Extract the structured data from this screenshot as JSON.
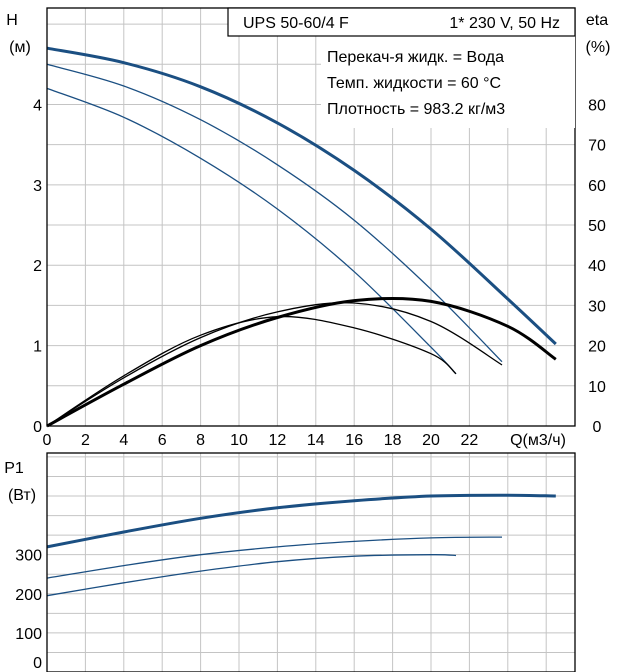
{
  "chart_data": [
    {
      "type": "line",
      "title_box": {
        "model": "UPS 50-60/4 F",
        "supply": "1* 230 V, 50 Hz",
        "liquid": "Перекач-я жидк. = Вода",
        "temp": "Темп. жидкости = 60 °C",
        "density": "Плотность = 983.2 кг/м3"
      },
      "ylabel": "H",
      "ylabel_unit": "(м)",
      "y2label": "eta",
      "y2label_unit": "(%)",
      "xlabel": "Q(м3/ч)",
      "xlim": [
        0,
        27.5
      ],
      "ylim": [
        0,
        5.2
      ],
      "y2lim": [
        0,
        104
      ],
      "x_ticks": [
        0,
        2,
        4,
        6,
        8,
        10,
        12,
        14,
        16,
        18,
        20,
        22
      ],
      "y_ticks": [
        0,
        1,
        2,
        3,
        4
      ],
      "y2_ticks": [
        0,
        10,
        20,
        30,
        40,
        50,
        60,
        70,
        80
      ],
      "grid": true,
      "colors": {
        "head": "#1b4f82",
        "efficiency": "#000000"
      },
      "series": [
        {
          "kind": "head",
          "emphasis": true,
          "x": [
            0,
            4,
            8,
            12,
            16,
            20,
            24,
            26.5
          ],
          "y": [
            4.7,
            4.52,
            4.22,
            3.77,
            3.18,
            2.45,
            1.58,
            1.02
          ]
        },
        {
          "kind": "head",
          "emphasis": false,
          "x": [
            0,
            4,
            8,
            12,
            16,
            20,
            23.7
          ],
          "y": [
            4.5,
            4.23,
            3.81,
            3.25,
            2.56,
            1.7,
            0.8
          ]
        },
        {
          "kind": "head",
          "emphasis": false,
          "x": [
            0,
            4,
            8,
            12,
            16,
            20,
            21.3
          ],
          "y": [
            4.2,
            3.84,
            3.33,
            2.7,
            1.92,
            0.98,
            0.65
          ]
        },
        {
          "kind": "efficiency",
          "emphasis": true,
          "x": [
            0,
            4,
            8,
            12,
            16,
            20,
            24,
            26.5
          ],
          "y": [
            0,
            10.4,
            20,
            27,
            31.2,
            31,
            24.8,
            16.6
          ]
        },
        {
          "kind": "efficiency",
          "emphasis": false,
          "x": [
            0,
            4,
            8,
            12,
            16,
            20,
            23.7
          ],
          "y": [
            0,
            12,
            22,
            28.4,
            30.6,
            26,
            15.2
          ]
        },
        {
          "kind": "efficiency",
          "emphasis": false,
          "x": [
            0,
            4,
            8,
            12,
            16,
            20,
            21.3
          ],
          "y": [
            0,
            12.5,
            22.6,
            27.2,
            24.4,
            18,
            13
          ]
        }
      ]
    },
    {
      "type": "line",
      "ylabel": "P1",
      "ylabel_unit": "(Вт)",
      "xlim": [
        0,
        27.5
      ],
      "ylim": [
        0,
        560
      ],
      "y_ticks": [
        0,
        100,
        200,
        300
      ],
      "grid": true,
      "colors": {
        "power": "#1b4f82"
      },
      "series": [
        {
          "kind": "power",
          "emphasis": true,
          "x": [
            0,
            4,
            8,
            12,
            16,
            20,
            24,
            26.5
          ],
          "y": [
            320,
            358,
            393,
            420,
            438,
            450,
            452,
            450
          ]
        },
        {
          "kind": "power",
          "emphasis": false,
          "x": [
            0,
            4,
            8,
            12,
            16,
            20,
            23.7
          ],
          "y": [
            240,
            272,
            300,
            320,
            334,
            343,
            345
          ]
        },
        {
          "kind": "power",
          "emphasis": false,
          "x": [
            0,
            4,
            8,
            12,
            16,
            20,
            21.3
          ],
          "y": [
            195,
            228,
            258,
            282,
            296,
            300,
            298
          ]
        }
      ]
    }
  ]
}
